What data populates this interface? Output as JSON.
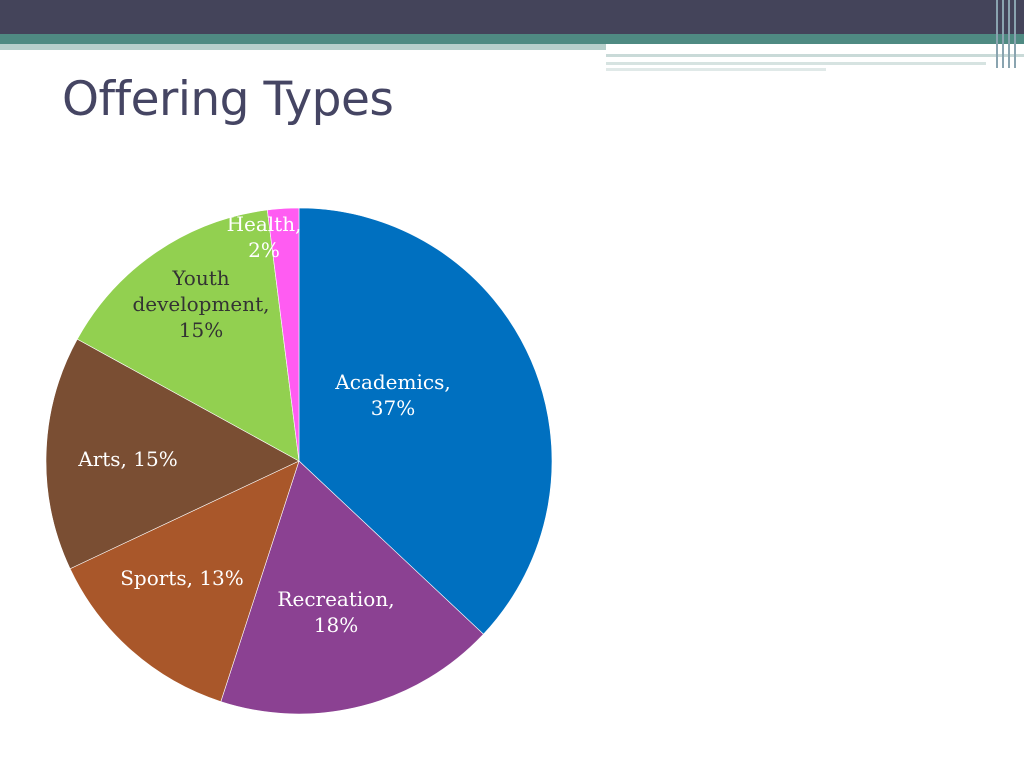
{
  "slide": {
    "title": "Offering Types"
  },
  "theme": {
    "top_bar": "#44445a",
    "accent_teal": "#4f8a82",
    "accent_light": "#b7cfcb",
    "title_color": "#454563"
  },
  "chart_data": {
    "type": "pie",
    "title": "",
    "slices": [
      {
        "name": "Academics",
        "value": 37,
        "color": "#0070c0",
        "label_lines": [
          "Academics,",
          "37%"
        ],
        "label_color": "#ffffff"
      },
      {
        "name": "Recreation",
        "value": 18,
        "color": "#8b4192",
        "label_lines": [
          "Recreation,",
          "18%"
        ],
        "label_color": "#ffffff"
      },
      {
        "name": "Sports",
        "value": 13,
        "color": "#a9572a",
        "label_lines": [
          "Sports, 13%"
        ],
        "label_color": "#ffffff"
      },
      {
        "name": "Arts",
        "value": 15,
        "color": "#7a4e33",
        "label_lines": [
          "Arts, 15%"
        ],
        "label_color": "#ffffff"
      },
      {
        "name": "Youth development",
        "value": 15,
        "color": "#92d050",
        "label_lines": [
          "Youth",
          "development,",
          "15%"
        ],
        "label_color": "#333333"
      },
      {
        "name": "Health",
        "value": 2,
        "color": "#ff5cf2",
        "label_lines": [
          "Health,",
          "2%"
        ],
        "label_color": "#ffffff"
      }
    ]
  }
}
